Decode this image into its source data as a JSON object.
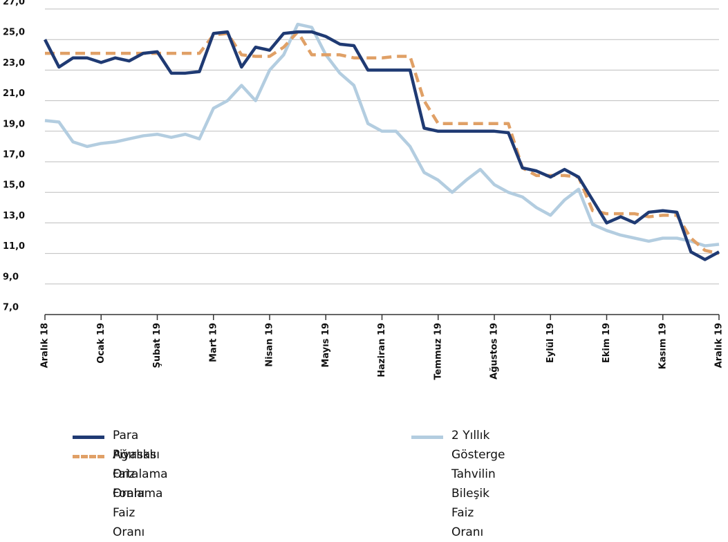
{
  "chart_data": {
    "type": "line",
    "x": [
      0,
      0.25,
      0.5,
      0.75,
      1,
      1.25,
      1.5,
      1.75,
      2,
      2.25,
      2.5,
      2.75,
      3,
      3.25,
      3.5,
      3.75,
      4,
      4.25,
      4.5,
      4.75,
      5,
      5.25,
      5.5,
      5.75,
      6,
      6.25,
      6.5,
      6.75,
      7,
      7.25,
      7.5,
      7.75,
      8,
      8.25,
      8.5,
      8.75,
      9,
      9.25,
      9.5,
      9.75,
      10,
      10.25,
      10.5,
      10.75,
      11,
      11.25,
      11.5,
      11.75,
      12
    ],
    "xlim": [
      0,
      12
    ],
    "xticks": [
      {
        "value": 0,
        "label": "Aralık 18"
      },
      {
        "value": 1,
        "label": "Ocak 19"
      },
      {
        "value": 2,
        "label": "Şubat 19"
      },
      {
        "value": 3,
        "label": "Mart 19"
      },
      {
        "value": 4,
        "label": "Nisan 19"
      },
      {
        "value": 5,
        "label": "Mayıs 19"
      },
      {
        "value": 6,
        "label": "Haziran 19"
      },
      {
        "value": 7,
        "label": "Temmuz 19"
      },
      {
        "value": 8,
        "label": "Ağustos 19"
      },
      {
        "value": 9,
        "label": "Eylül 19"
      },
      {
        "value": 10,
        "label": "Ekim 19"
      },
      {
        "value": 11,
        "label": "Kasım 19"
      },
      {
        "value": 12,
        "label": "Aralık 19"
      }
    ],
    "ylim": [
      7,
      27
    ],
    "yticks": [
      {
        "value": 7,
        "label": "7,0"
      },
      {
        "value": 9,
        "label": "9,0"
      },
      {
        "value": 11,
        "label": "11,0"
      },
      {
        "value": 13,
        "label": "13,0"
      },
      {
        "value": 15,
        "label": "15,0"
      },
      {
        "value": 17,
        "label": "17,0"
      },
      {
        "value": 19,
        "label": "19,0"
      },
      {
        "value": 21,
        "label": "21,0"
      },
      {
        "value": 23,
        "label": "23,0"
      },
      {
        "value": 25,
        "label": "25,0"
      },
      {
        "value": 27,
        "label": "27,0"
      }
    ],
    "grid": true,
    "series": [
      {
        "name": "Para Piyasası Faiz Oranı",
        "color": "#1f3a73",
        "dash": false,
        "values": [
          25.0,
          23.2,
          23.8,
          23.8,
          23.5,
          23.8,
          23.6,
          24.1,
          24.2,
          22.8,
          22.8,
          22.9,
          25.4,
          25.5,
          23.2,
          24.5,
          24.3,
          25.4,
          25.5,
          25.5,
          25.2,
          24.7,
          24.6,
          23.0,
          23.0,
          23.0,
          23.0,
          19.2,
          19.0,
          19.0,
          19.0,
          19.0,
          19.0,
          18.9,
          16.6,
          16.4,
          16.0,
          16.5,
          16.0,
          14.5,
          13.0,
          13.4,
          13.0,
          13.7,
          13.8,
          13.7,
          11.1,
          10.6,
          11.1
        ]
      },
      {
        "name": "Ağırlıklı Ortalama Fonlama Faiz Oranı",
        "color": "#e0a066",
        "dash": true,
        "values": [
          24.1,
          24.1,
          24.1,
          24.1,
          24.1,
          24.1,
          24.1,
          24.1,
          24.1,
          24.1,
          24.1,
          24.1,
          25.3,
          25.4,
          24.0,
          23.9,
          23.9,
          24.5,
          25.5,
          24.0,
          24.0,
          24.0,
          23.8,
          23.8,
          23.8,
          23.9,
          23.9,
          21.0,
          19.5,
          19.5,
          19.5,
          19.5,
          19.5,
          19.5,
          16.6,
          16.1,
          16.1,
          16.1,
          16.0,
          13.8,
          13.6,
          13.6,
          13.6,
          13.4,
          13.5,
          13.5,
          12.0,
          11.2,
          11.0
        ]
      },
      {
        "name": "2 Yıllık Gösterge Tahvilin Bileşik Faiz Oranı",
        "color": "#b3cde0",
        "dash": false,
        "values": [
          19.7,
          19.6,
          18.3,
          18.0,
          18.2,
          18.3,
          18.5,
          18.7,
          18.8,
          18.6,
          18.8,
          18.5,
          20.5,
          21.0,
          22.0,
          21.0,
          23.0,
          24.0,
          26.0,
          25.8,
          24.0,
          22.8,
          22.0,
          19.5,
          19.0,
          19.0,
          18.0,
          16.3,
          15.8,
          15.0,
          15.8,
          16.5,
          15.5,
          15.0,
          14.7,
          14.0,
          13.5,
          14.5,
          15.2,
          12.9,
          12.5,
          12.2,
          12.0,
          11.8,
          12.0,
          12.0,
          11.8,
          11.5,
          11.6
        ]
      }
    ]
  }
}
